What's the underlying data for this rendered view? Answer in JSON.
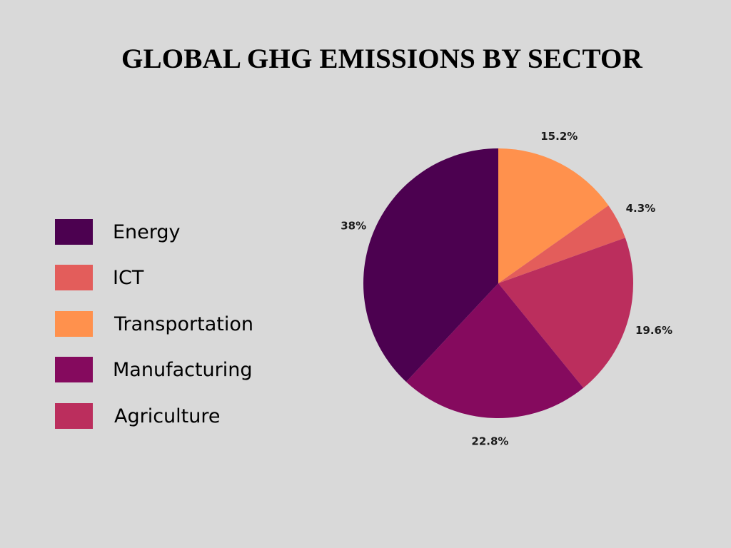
{
  "title": "GLOBAL GHG EMISSIONS BY SECTOR",
  "chart_data": {
    "type": "pie",
    "title": "GLOBAL GHG EMISSIONS BY SECTOR",
    "slices": [
      {
        "name": "Transportation",
        "value": 15.2,
        "label": "15.2%",
        "color": "#ff914d"
      },
      {
        "name": "ICT",
        "value": 4.3,
        "label": "4.3%",
        "color": "#e35d5b"
      },
      {
        "name": "Agriculture",
        "value": 19.6,
        "label": "19.6%",
        "color": "#bb2e5d"
      },
      {
        "name": "Manufacturing",
        "value": 22.8,
        "label": "22.8%",
        "color": "#850a5e"
      },
      {
        "name": "Energy",
        "value": 38,
        "label": "38%",
        "color": "#4c0150"
      }
    ],
    "legend": {
      "placement": "left",
      "items": [
        {
          "label": "Energy",
          "color": "#4c0150"
        },
        {
          "label": "ICT",
          "color": "#e35d5b"
        },
        {
          "label": "Transportation",
          "color": "#ff914d"
        },
        {
          "label": "Manufacturing",
          "color": "#850a5e"
        },
        {
          "label": "Agriculture",
          "color": "#bb2e5d"
        }
      ]
    }
  }
}
